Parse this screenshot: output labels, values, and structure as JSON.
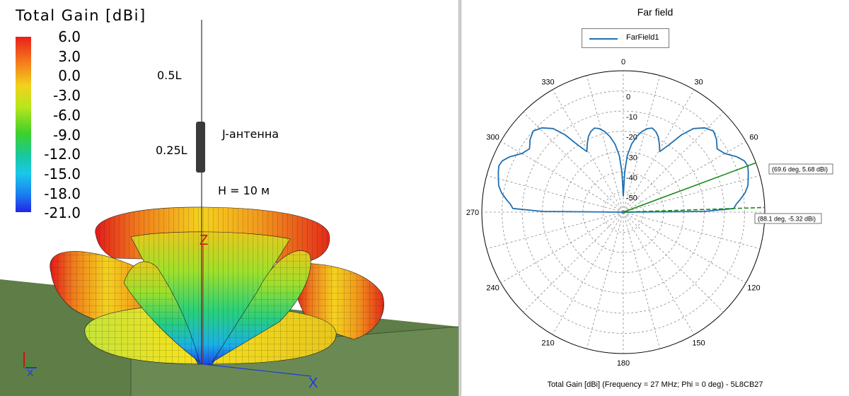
{
  "left_panel": {
    "legend": {
      "title": "Total Gain [dBi]",
      "ticks": [
        "6.0",
        "3.0",
        "0.0",
        "-3.0",
        "-6.0",
        "-9.0",
        "-12.0",
        "-15.0",
        "-18.0",
        "-21.0"
      ]
    },
    "annotations": {
      "half_wave": "0.5L",
      "quarter_wave": "0.25L",
      "antenna_name": "J-антенна",
      "height": "H = 10 м"
    },
    "axes": {
      "z": "Z",
      "x": "X"
    },
    "colors": {
      "ground": "#5f7d47",
      "hot": "#e8201c",
      "cold": "#1a7ef0"
    }
  },
  "chart_data": {
    "type": "polar-line",
    "title": "Far field",
    "legend": [
      "FarField1"
    ],
    "caption": "Total Gain [dBi] (Frequency = 27 MHz; Phi = 0 deg) - 5L8CB27",
    "radial_ticks": [
      "0",
      "-10",
      "-20",
      "-30",
      "-40",
      "-50"
    ],
    "radial_range_dbi": [
      -60,
      10
    ],
    "angle_labels": [
      "0",
      "30",
      "60",
      "120",
      "150",
      "180",
      "210",
      "240",
      "270",
      "300",
      "330"
    ],
    "markers": [
      {
        "angle_deg": 69.6,
        "gain_dbi": 5.68,
        "label": "(69.6 deg, 5.68 dBi)"
      },
      {
        "angle_deg": 88.1,
        "gain_dbi": -5.32,
        "label": "(88.1 deg, -5.32 dBi)"
      }
    ],
    "series": [
      {
        "name": "FarField1",
        "color": "#1f6fb2",
        "theta_deg": [
          0,
          2,
          4,
          7,
          10,
          13,
          16,
          19,
          22,
          25,
          28,
          31,
          34,
          37,
          40,
          44,
          48,
          52,
          56,
          60,
          64,
          67,
          69.6,
          72,
          75,
          78,
          81,
          84,
          86,
          88.1,
          89.5
        ],
        "gain_dbi": [
          -52,
          -40,
          -32,
          -26,
          -22,
          -19,
          -17,
          -16,
          -17,
          -19,
          -22,
          -25,
          -20,
          -12,
          -6,
          -2,
          0,
          -1.5,
          -4,
          -2,
          2.5,
          5,
          5.68,
          5,
          4,
          3,
          1,
          -2,
          -4,
          -5.32,
          -20
        ]
      }
    ]
  }
}
